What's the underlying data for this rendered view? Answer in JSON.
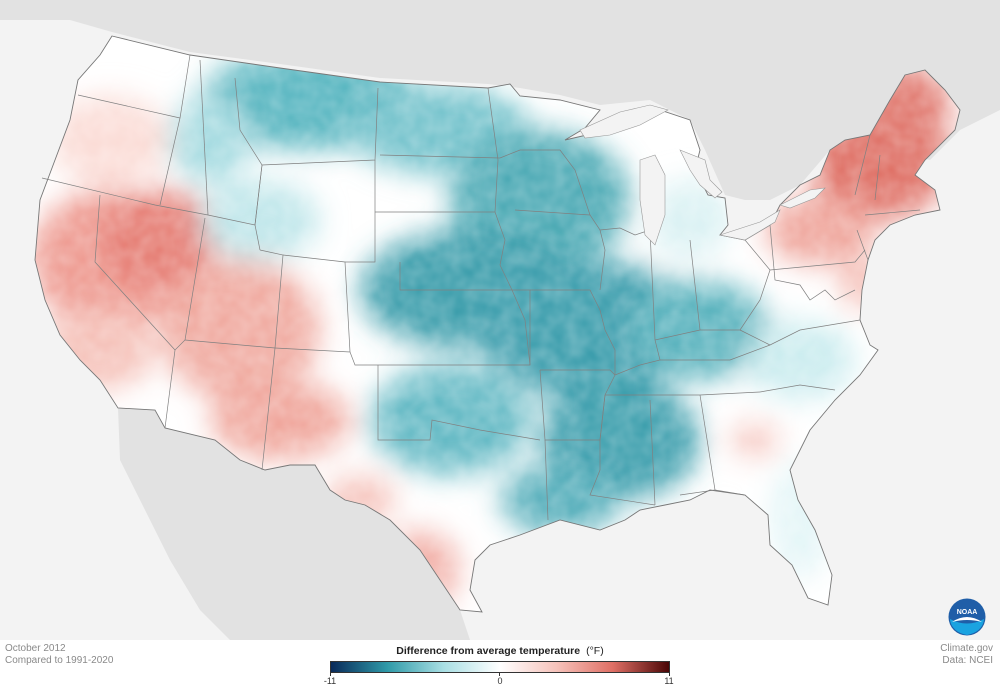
{
  "map": {
    "region": "contiguous-us",
    "description_layer": "temperature-anomaly"
  },
  "colors": {
    "cold_max": "#0a2a5a",
    "cold_mid": "#2f9aa8",
    "cold_light": "#a9dfe4",
    "neutral": "#ffffff",
    "warm_light": "#f6c3bb",
    "warm_mid": "#df6f65",
    "warm_max": "#4a0606",
    "land_outside": "#e2e2e2",
    "ocean": "#f3f3f3",
    "borders": "#888888"
  },
  "legend": {
    "title": "Difference from average temperature",
    "unit": "(°F)",
    "min_label": "-11",
    "mid_label": "0",
    "max_label": "11"
  },
  "footer": {
    "period": "October 2012",
    "baseline": "Compared to 1991-2020",
    "source_site": "Climate.gov",
    "data_source": "Data: NCEI"
  },
  "logo": {
    "text": "NOAA",
    "icon": "noaa-logo-icon"
  }
}
